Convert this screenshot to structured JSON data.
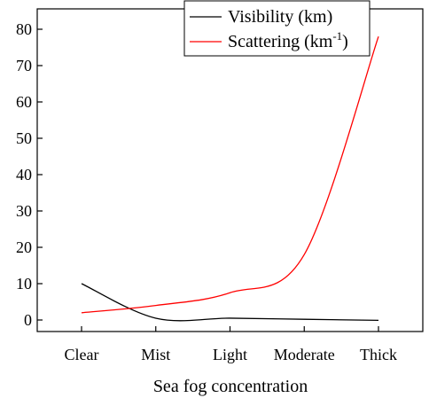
{
  "chart_data": {
    "type": "line",
    "title": "",
    "xlabel": "Sea fog concentration",
    "ylabel": "",
    "categories": [
      "Clear",
      "Mist",
      "Light",
      "Moderate",
      "Thick"
    ],
    "ylim": [
      -2,
      85
    ],
    "yticks": [
      0,
      10,
      20,
      30,
      40,
      50,
      60,
      70,
      80
    ],
    "grid": false,
    "legend_position": "top-right",
    "series": [
      {
        "name": "Visibility (km)",
        "color": "#000000",
        "values": [
          10,
          0.5,
          0.5,
          0.2,
          -0.1
        ]
      },
      {
        "name_main": "Scattering (km",
        "name_sup": "-1",
        "name_end": ")",
        "color": "#ff0000",
        "values": [
          2,
          4,
          7.5,
          18,
          78
        ]
      }
    ]
  }
}
